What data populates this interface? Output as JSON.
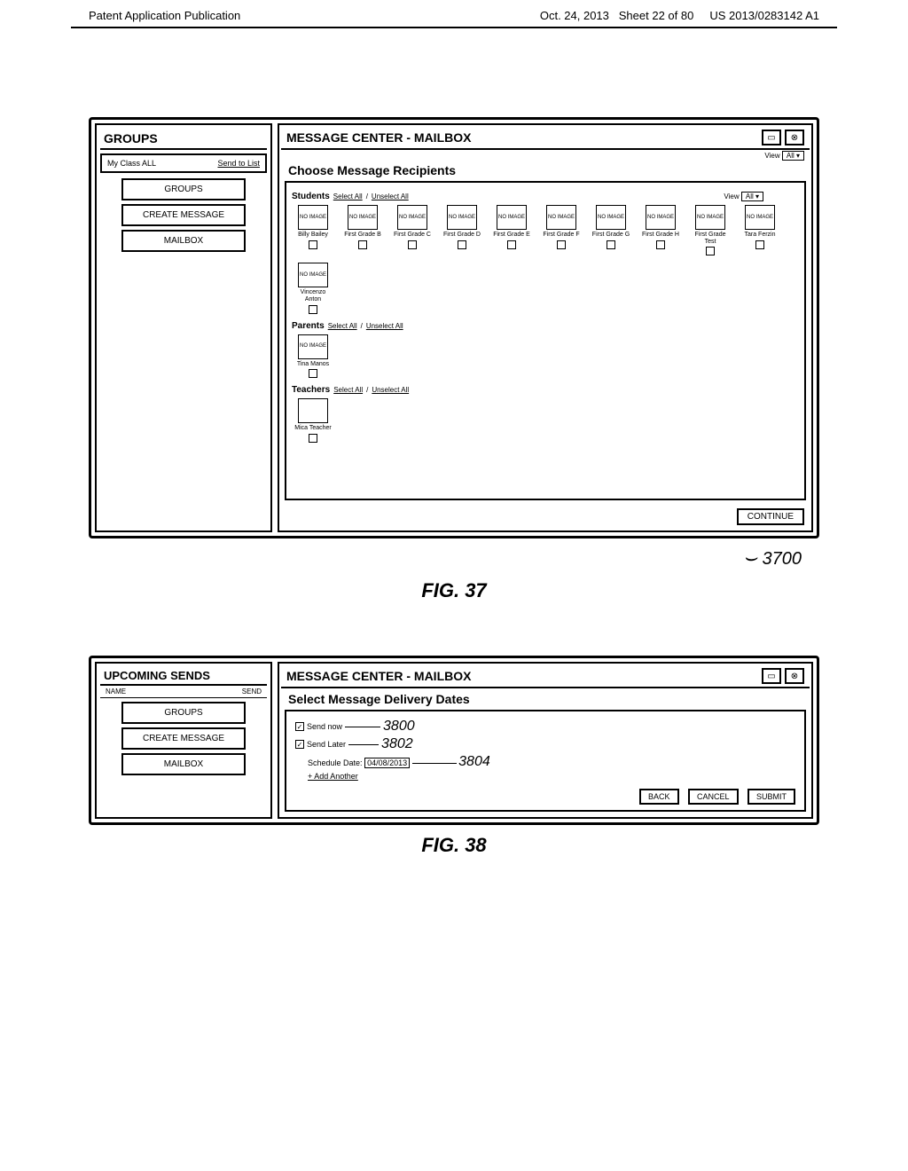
{
  "header": {
    "left": "Patent Application Publication",
    "date": "Oct. 24, 2013",
    "sheet": "Sheet 22 of 80",
    "pubno": "US 2013/0283142 A1"
  },
  "fig37": {
    "left": {
      "title": "GROUPS",
      "myclass": "My Class ALL",
      "sendto": "Send to List",
      "nav": [
        "GROUPS",
        "CREATE MESSAGE",
        "MAILBOX"
      ]
    },
    "right": {
      "title": "MESSAGE CENTER - MAILBOX",
      "view_label": "View",
      "view_value": "All",
      "subtitle": "Choose Message Recipients",
      "students_label": "Students",
      "select_all": "Select All",
      "unselect_all": "Unselect All",
      "students_view": "View",
      "students_view_value": "All",
      "students": [
        {
          "label": "Billy Bailey"
        },
        {
          "label": "First Grade B"
        },
        {
          "label": "First Grade C"
        },
        {
          "label": "First Grade D"
        },
        {
          "label": "First Grade E"
        },
        {
          "label": "First Grade F"
        },
        {
          "label": "First Grade G"
        },
        {
          "label": "First Grade H"
        },
        {
          "label": "First Grade Test"
        },
        {
          "label": "Tara Ferzin"
        },
        {
          "label": "Vincenzo Anton"
        }
      ],
      "no_image": "NO IMAGE",
      "parents_label": "Parents",
      "parents": [
        {
          "label": "Tina Manos"
        }
      ],
      "teachers_label": "Teachers",
      "teachers": [
        {
          "label": "Mica Teacher"
        }
      ],
      "continue": "CONTINUE"
    },
    "ref": "3700",
    "caption": "FIG. 37"
  },
  "fig38": {
    "left": {
      "title": "UPCOMING SENDS",
      "col1": "NAME",
      "col2": "SEND",
      "nav": [
        "GROUPS",
        "CREATE MESSAGE",
        "MAILBOX"
      ]
    },
    "right": {
      "title": "MESSAGE CENTER - MAILBOX",
      "subtitle": "Select Message Delivery Dates",
      "send_now": "Send now",
      "ref1": "3800",
      "send_later": "Send Later",
      "ref2": "3802",
      "schedule_label": "Schedule Date:",
      "schedule_date": "04/08/2013",
      "ref3": "3804",
      "add_another": "+ Add Another",
      "back": "BACK",
      "cancel": "CANCEL",
      "submit": "SUBMIT"
    },
    "caption": "FIG. 38"
  }
}
